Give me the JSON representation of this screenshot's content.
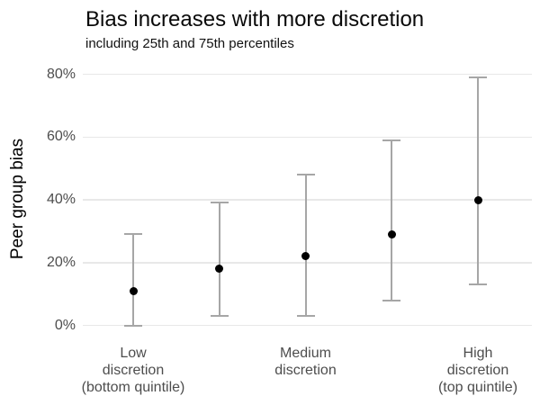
{
  "header": {
    "title": "Bias increases with more discretion",
    "subtitle": "including 25th and 75th percentiles"
  },
  "chart_data": {
    "type": "scatter",
    "subtype": "pointrange-errorbar",
    "title": "Bias increases with more discretion",
    "subtitle": "including 25th and 75th percentiles",
    "xlabel": "",
    "ylabel": "Peer group bias",
    "ylim": [
      0,
      80
    ],
    "yticks": [
      0,
      20,
      40,
      60,
      80
    ],
    "ytick_labels": [
      "0%",
      "20%",
      "40%",
      "60%",
      "80%"
    ],
    "grid": "horizontal-only",
    "legend": "none",
    "categories": [
      "Low\ndiscretion\n(bottom quintile)",
      "",
      "Medium\ndiscretion",
      "",
      "High\ndiscretion\n(top quintile)"
    ],
    "series": [
      {
        "name": "median",
        "values": [
          11,
          18,
          22,
          29,
          40
        ]
      },
      {
        "name": "25th percentile",
        "values": [
          0,
          3,
          3,
          8,
          13
        ]
      },
      {
        "name": "75th percentile",
        "values": [
          29,
          39,
          48,
          59,
          79
        ]
      }
    ],
    "colors": {
      "point": "#000000",
      "errorbar": "#a6a6a6",
      "gridline": "#e8e8e8",
      "tick_label": "#4d4d4d",
      "axis_title": "#000000",
      "background": "#ffffff"
    }
  }
}
